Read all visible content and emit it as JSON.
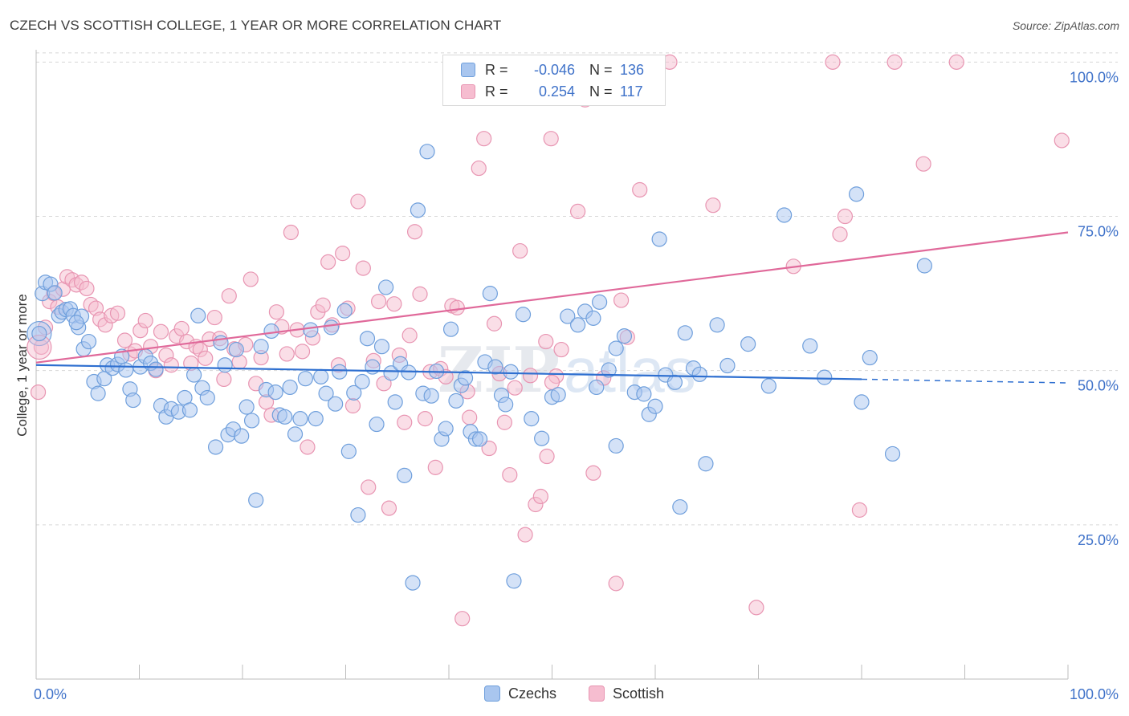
{
  "header": {
    "title": "CZECH VS SCOTTISH COLLEGE, 1 YEAR OR MORE CORRELATION CHART",
    "source": "Source: ZipAtlas.com"
  },
  "legend": {
    "rows": [
      {
        "r_label": "R =",
        "r_value": "-0.046",
        "n_label": "N =",
        "n_value": "136"
      },
      {
        "r_label": "R =",
        "r_value": "0.254",
        "n_label": "N =",
        "n_value": "117"
      }
    ]
  },
  "bottom_legend": {
    "czechs": "Czechs",
    "scottish": "Scottish"
  },
  "colors": {
    "czech_fill": "#a9c6ef",
    "czech_stroke": "#6f9fdc",
    "czech_line": "#2e6fd0",
    "scottish_fill": "#f6bdd0",
    "scottish_stroke": "#e895b2",
    "scottish_line": "#e0699a",
    "tick_label": "#3f72c9",
    "grid": "#d8d8d8"
  },
  "chart_data": {
    "type": "scatter",
    "title": "CZECH VS SCOTTISH COLLEGE, 1 YEAR OR MORE CORRELATION CHART",
    "xlabel": "",
    "ylabel": "College, 1 year or more",
    "xlim": [
      0,
      100
    ],
    "ylim": [
      0,
      102
    ],
    "x_tick_labels": [
      "0.0%",
      "100.0%"
    ],
    "y_tick_labels": [
      "25.0%",
      "50.0%",
      "75.0%",
      "100.0%"
    ],
    "y_ticks": [
      25,
      50,
      75,
      100
    ],
    "grid": "horizontal dashed",
    "legend_position": "top-center",
    "watermark": "ZIPatlas",
    "series": [
      {
        "name": "Czechs",
        "r": -0.046,
        "n": 136,
        "trend": {
          "x0": 0,
          "y0": 50.9,
          "x1": 80,
          "y1": 48.6,
          "dashed_to": 100,
          "dashed_y": 48.0
        },
        "points": [
          [
            0.3,
            56.0
          ],
          [
            0.6,
            62.5
          ],
          [
            0.9,
            64.3
          ],
          [
            1.4,
            64.0
          ],
          [
            1.8,
            62.6
          ],
          [
            2.2,
            58.9
          ],
          [
            2.5,
            59.5
          ],
          [
            2.9,
            59.9
          ],
          [
            3.3,
            60.0
          ],
          [
            3.6,
            58.9
          ],
          [
            4.1,
            57.0
          ],
          [
            4.4,
            58.8
          ],
          [
            3.9,
            57.8
          ],
          [
            4.6,
            53.5
          ],
          [
            5.1,
            54.7
          ],
          [
            5.6,
            48.2
          ],
          [
            6.0,
            46.3
          ],
          [
            6.6,
            48.7
          ],
          [
            6.9,
            50.9
          ],
          [
            7.4,
            50.4
          ],
          [
            7.9,
            51.0
          ],
          [
            8.3,
            52.3
          ],
          [
            8.7,
            50.1
          ],
          [
            9.1,
            47.0
          ],
          [
            9.4,
            45.2
          ],
          [
            10.1,
            50.6
          ],
          [
            10.6,
            52.3
          ],
          [
            11.1,
            51.2
          ],
          [
            11.6,
            50.2
          ],
          [
            12.1,
            44.3
          ],
          [
            12.6,
            42.5
          ],
          [
            13.1,
            43.8
          ],
          [
            13.8,
            43.3
          ],
          [
            14.4,
            45.6
          ],
          [
            14.9,
            43.6
          ],
          [
            15.3,
            49.3
          ],
          [
            16.1,
            47.2
          ],
          [
            15.7,
            58.9
          ],
          [
            16.6,
            45.6
          ],
          [
            17.4,
            37.6
          ],
          [
            17.9,
            54.5
          ],
          [
            18.3,
            50.9
          ],
          [
            18.6,
            39.6
          ],
          [
            19.1,
            40.5
          ],
          [
            19.4,
            53.4
          ],
          [
            19.9,
            39.4
          ],
          [
            20.4,
            44.1
          ],
          [
            20.9,
            41.9
          ],
          [
            21.3,
            29.0
          ],
          [
            21.8,
            53.9
          ],
          [
            22.3,
            46.9
          ],
          [
            22.8,
            56.4
          ],
          [
            23.2,
            46.5
          ],
          [
            23.6,
            42.8
          ],
          [
            24.1,
            42.5
          ],
          [
            24.6,
            47.3
          ],
          [
            25.1,
            39.7
          ],
          [
            25.6,
            42.2
          ],
          [
            26.1,
            48.7
          ],
          [
            26.6,
            56.6
          ],
          [
            27.1,
            42.2
          ],
          [
            27.6,
            49.0
          ],
          [
            28.1,
            46.3
          ],
          [
            28.6,
            57.0
          ],
          [
            29.0,
            44.6
          ],
          [
            29.4,
            49.8
          ],
          [
            29.9,
            59.7
          ],
          [
            30.3,
            36.9
          ],
          [
            30.8,
            46.4
          ],
          [
            31.2,
            26.6
          ],
          [
            31.6,
            48.2
          ],
          [
            32.1,
            55.2
          ],
          [
            32.6,
            50.6
          ],
          [
            33.0,
            41.3
          ],
          [
            33.5,
            53.9
          ],
          [
            33.9,
            63.5
          ],
          [
            34.4,
            49.6
          ],
          [
            34.8,
            44.9
          ],
          [
            35.3,
            51.1
          ],
          [
            35.7,
            33.0
          ],
          [
            36.1,
            49.7
          ],
          [
            36.5,
            15.6
          ],
          [
            37.0,
            76.0
          ],
          [
            37.5,
            46.3
          ],
          [
            37.9,
            85.5
          ],
          [
            38.3,
            45.9
          ],
          [
            38.8,
            49.9
          ],
          [
            39.3,
            38.9
          ],
          [
            39.7,
            40.6
          ],
          [
            40.2,
            56.7
          ],
          [
            40.7,
            45.1
          ],
          [
            41.2,
            47.6
          ],
          [
            41.6,
            48.8
          ],
          [
            42.1,
            40.1
          ],
          [
            42.6,
            38.9
          ],
          [
            43.0,
            38.9
          ],
          [
            43.5,
            51.4
          ],
          [
            44.0,
            62.5
          ],
          [
            44.5,
            50.6
          ],
          [
            45.1,
            46.0
          ],
          [
            45.5,
            44.5
          ],
          [
            46.0,
            49.8
          ],
          [
            46.3,
            15.9
          ],
          [
            47.2,
            59.1
          ],
          [
            48.0,
            42.2
          ],
          [
            49.0,
            39.0
          ],
          [
            50.0,
            45.7
          ],
          [
            50.6,
            46.1
          ],
          [
            51.5,
            58.8
          ],
          [
            52.5,
            57.4
          ],
          [
            53.2,
            59.6
          ],
          [
            54.0,
            58.5
          ],
          [
            54.6,
            61.1
          ],
          [
            55.5,
            50.1
          ],
          [
            56.2,
            37.8
          ],
          [
            57.0,
            55.6
          ],
          [
            58.0,
            46.5
          ],
          [
            58.9,
            46.2
          ],
          [
            59.4,
            42.9
          ],
          [
            60.0,
            44.2
          ],
          [
            61.0,
            49.3
          ],
          [
            61.9,
            48.1
          ],
          [
            62.4,
            27.9
          ],
          [
            62.9,
            56.1
          ],
          [
            63.7,
            50.4
          ],
          [
            64.3,
            49.4
          ],
          [
            64.9,
            34.9
          ],
          [
            66.0,
            57.4
          ],
          [
            67.0,
            50.8
          ],
          [
            69.0,
            54.3
          ],
          [
            71.0,
            47.5
          ],
          [
            72.5,
            75.2
          ],
          [
            75.0,
            54.0
          ],
          [
            76.4,
            48.9
          ],
          [
            79.5,
            78.6
          ],
          [
            80.0,
            44.9
          ],
          [
            80.8,
            52.1
          ],
          [
            83.0,
            36.5
          ],
          [
            86.1,
            67.0
          ],
          [
            60.4,
            71.3
          ],
          [
            54.3,
            47.3
          ],
          [
            56.2,
            53.6
          ]
        ]
      },
      {
        "name": "Scottish",
        "r": 0.254,
        "n": 117,
        "trend": {
          "x0": 0,
          "y0": 51.3,
          "x1": 100,
          "y1": 72.4
        },
        "points": [
          [
            0.2,
            46.5
          ],
          [
            0.5,
            53.8
          ],
          [
            0.9,
            57.0
          ],
          [
            1.3,
            61.2
          ],
          [
            1.7,
            62.5
          ],
          [
            2.1,
            60.3
          ],
          [
            2.6,
            63.2
          ],
          [
            3.0,
            65.2
          ],
          [
            3.5,
            64.7
          ],
          [
            3.9,
            63.9
          ],
          [
            4.4,
            64.3
          ],
          [
            4.9,
            63.3
          ],
          [
            5.3,
            60.7
          ],
          [
            5.8,
            60.1
          ],
          [
            6.2,
            58.3
          ],
          [
            6.7,
            57.4
          ],
          [
            7.3,
            58.9
          ],
          [
            7.9,
            59.3
          ],
          [
            8.6,
            54.9
          ],
          [
            9.1,
            52.7
          ],
          [
            9.6,
            53.2
          ],
          [
            10.1,
            56.5
          ],
          [
            10.6,
            58.1
          ],
          [
            11.1,
            53.9
          ],
          [
            11.6,
            50.0
          ],
          [
            12.1,
            56.3
          ],
          [
            12.6,
            52.5
          ],
          [
            13.1,
            50.9
          ],
          [
            13.6,
            55.6
          ],
          [
            14.1,
            56.8
          ],
          [
            14.6,
            54.7
          ],
          [
            15.0,
            51.2
          ],
          [
            15.5,
            53.9
          ],
          [
            15.9,
            53.4
          ],
          [
            16.4,
            52.0
          ],
          [
            16.8,
            55.1
          ],
          [
            17.3,
            58.6
          ],
          [
            17.8,
            55.2
          ],
          [
            18.2,
            48.6
          ],
          [
            18.7,
            62.1
          ],
          [
            19.2,
            53.5
          ],
          [
            19.7,
            51.4
          ],
          [
            20.3,
            54.2
          ],
          [
            20.8,
            64.8
          ],
          [
            21.3,
            47.9
          ],
          [
            21.8,
            52.1
          ],
          [
            22.3,
            44.9
          ],
          [
            22.8,
            42.8
          ],
          [
            23.3,
            59.5
          ],
          [
            23.8,
            57.1
          ],
          [
            24.3,
            52.7
          ],
          [
            24.7,
            72.4
          ],
          [
            25.3,
            56.6
          ],
          [
            25.8,
            53.1
          ],
          [
            26.3,
            37.6
          ],
          [
            26.8,
            55.3
          ],
          [
            27.3,
            59.5
          ],
          [
            27.8,
            60.6
          ],
          [
            28.3,
            67.6
          ],
          [
            28.7,
            57.4
          ],
          [
            29.3,
            50.9
          ],
          [
            29.7,
            69.0
          ],
          [
            30.2,
            60.1
          ],
          [
            30.7,
            44.3
          ],
          [
            31.2,
            77.4
          ],
          [
            31.7,
            66.6
          ],
          [
            32.2,
            31.1
          ],
          [
            32.7,
            51.6
          ],
          [
            33.2,
            61.2
          ],
          [
            33.7,
            47.9
          ],
          [
            34.2,
            27.7
          ],
          [
            34.7,
            60.8
          ],
          [
            35.2,
            52.5
          ],
          [
            35.7,
            41.6
          ],
          [
            36.2,
            55.7
          ],
          [
            36.7,
            72.5
          ],
          [
            37.2,
            62.4
          ],
          [
            37.7,
            42.2
          ],
          [
            38.2,
            49.8
          ],
          [
            38.7,
            34.3
          ],
          [
            39.2,
            50.3
          ],
          [
            39.7,
            49.0
          ],
          [
            40.3,
            60.5
          ],
          [
            40.8,
            60.2
          ],
          [
            41.3,
            9.8
          ],
          [
            41.8,
            46.6
          ],
          [
            42.4,
            94.6
          ],
          [
            42.9,
            82.8
          ],
          [
            43.4,
            87.6
          ],
          [
            43.9,
            37.4
          ],
          [
            44.4,
            57.6
          ],
          [
            44.9,
            49.5
          ],
          [
            45.4,
            41.6
          ],
          [
            45.9,
            33.1
          ],
          [
            46.4,
            47.2
          ],
          [
            46.9,
            69.4
          ],
          [
            47.4,
            23.4
          ],
          [
            47.9,
            49.2
          ],
          [
            48.4,
            28.3
          ],
          [
            48.9,
            29.6
          ],
          [
            49.4,
            54.7
          ],
          [
            49.9,
            87.6
          ],
          [
            50.4,
            49.1
          ],
          [
            50.9,
            53.4
          ],
          [
            52.5,
            75.8
          ],
          [
            53.2,
            93.9
          ],
          [
            56.2,
            15.5
          ],
          [
            56.7,
            61.4
          ],
          [
            57.3,
            55.4
          ],
          [
            58.5,
            79.3
          ],
          [
            61.4,
            100.0
          ],
          [
            65.6,
            76.8
          ],
          [
            69.8,
            11.6
          ],
          [
            73.4,
            66.9
          ],
          [
            77.2,
            100.0
          ],
          [
            77.9,
            72.1
          ],
          [
            78.4,
            75.0
          ],
          [
            79.8,
            27.4
          ],
          [
            83.2,
            100.0
          ],
          [
            86.0,
            83.5
          ],
          [
            89.2,
            100.0
          ],
          [
            99.4,
            87.3
          ],
          [
            42.0,
            42.4
          ],
          [
            55.0,
            48.8
          ],
          [
            54.0,
            33.4
          ],
          [
            49.5,
            36.1
          ],
          [
            50.0,
            48.1
          ]
        ]
      }
    ]
  }
}
